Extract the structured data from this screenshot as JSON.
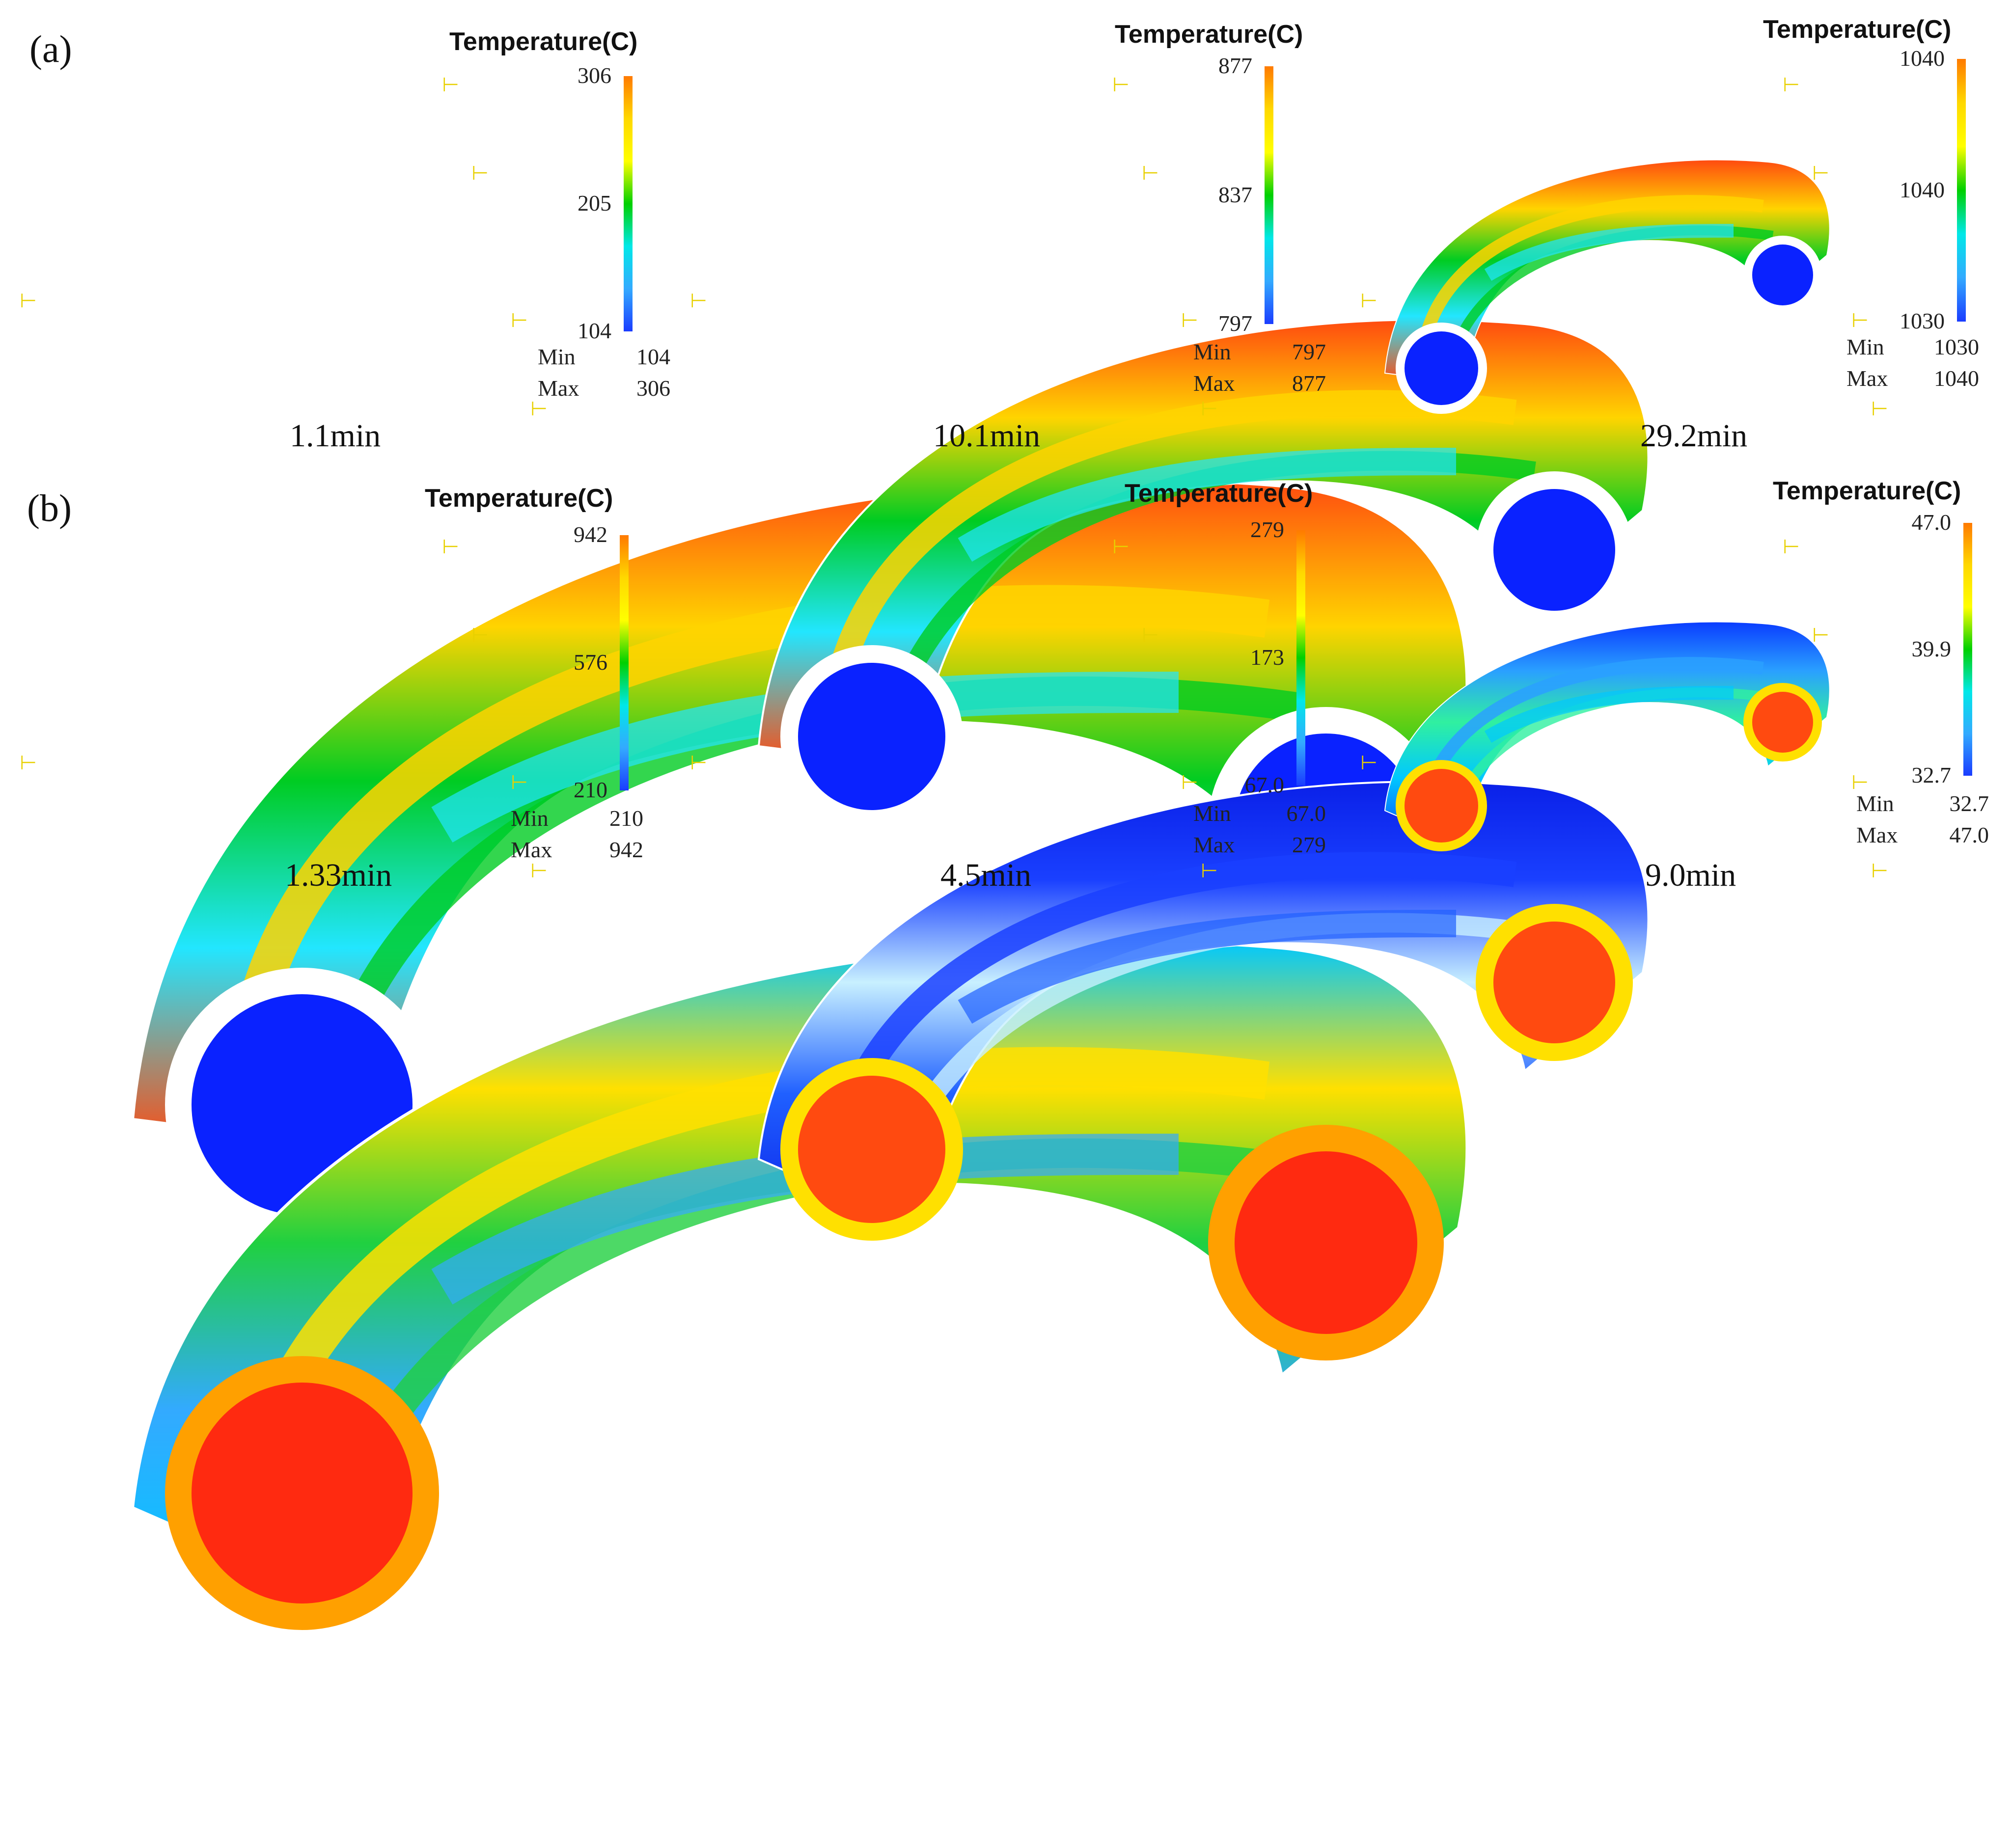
{
  "figure": {
    "rows": [
      {
        "label": "(a)",
        "panels": [
          {
            "legend_title": "Temperature(C)",
            "scale": {
              "top": "306",
              "mid": "205",
              "bottom": "104"
            },
            "min_label": "Min",
            "min_value": "104",
            "max_label": "Max",
            "max_value": "306",
            "time": "1.1min",
            "pattern": "hot-outer"
          },
          {
            "legend_title": "Temperature(C)",
            "scale": {
              "top": "877",
              "mid": "837",
              "bottom": "797"
            },
            "min_label": "Min",
            "min_value": "797",
            "max_label": "Max",
            "max_value": "877",
            "time": "10.1min",
            "pattern": "hot-outer"
          },
          {
            "legend_title": "Temperature(C)",
            "scale": {
              "top": "1040",
              "mid": "1040",
              "bottom": "1030"
            },
            "min_label": "Min",
            "min_value": "1030",
            "max_label": "Max",
            "max_value": "1040",
            "time": "29.2min",
            "pattern": "hot-outer"
          }
        ]
      },
      {
        "label": "(b)",
        "panels": [
          {
            "legend_title": "Temperature(C)",
            "scale": {
              "top": "942",
              "mid": "576",
              "bottom": "210"
            },
            "min_label": "Min",
            "min_value": "210",
            "max_label": "Max",
            "max_value": "942",
            "time": "1.33min",
            "pattern": "hot-core-warm"
          },
          {
            "legend_title": "Temperature(C)",
            "scale": {
              "top": "279",
              "mid": "173",
              "bottom": "67.0"
            },
            "min_label": "Min",
            "min_value": "67.0",
            "max_label": "Max",
            "max_value": "279",
            "time": "4.5min",
            "pattern": "hot-core-cold"
          },
          {
            "legend_title": "Temperature(C)",
            "scale": {
              "top": "47.0",
              "mid": "39.9",
              "bottom": "32.7"
            },
            "min_label": "Min",
            "min_value": "32.7",
            "max_label": "Max",
            "max_value": "47.0",
            "time": "9.0min",
            "pattern": "hot-core-cool"
          }
        ]
      }
    ],
    "colormap": [
      "#ff7a00",
      "#ffd800",
      "#ffff00",
      "#00d000",
      "#00e8e8",
      "#33aaff",
      "#1a3cff"
    ]
  }
}
